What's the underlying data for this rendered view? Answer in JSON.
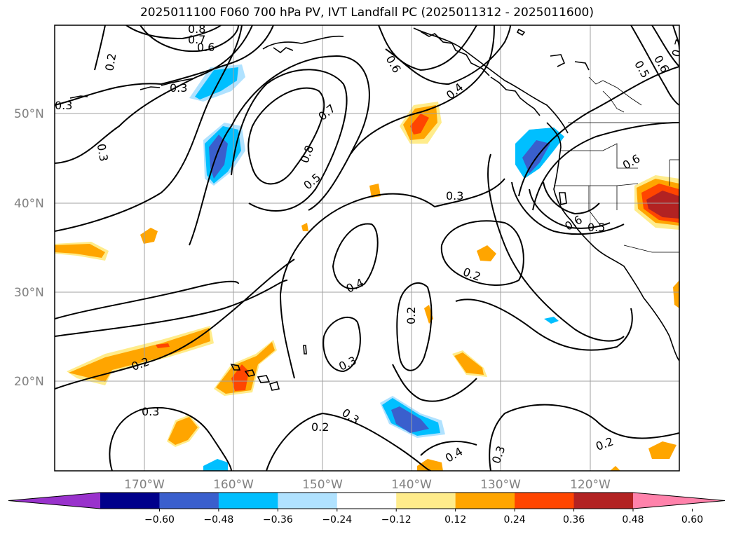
{
  "title": "2025011100 F060 700 hPa PV, IVT Landfall PC (2025011312 - 2025011600)",
  "lat_labels": [
    "50°N",
    "40°N",
    "30°N",
    "20°N"
  ],
  "lon_labels": [
    "170°W",
    "160°W",
    "150°W",
    "140°W",
    "130°W",
    "120°W"
  ],
  "contour_labels": [
    "0.2",
    "0.3",
    "0.4",
    "0.5",
    "0.6",
    "0.7",
    "0.8"
  ],
  "colorbar": {
    "ticks": [
      "−0.60",
      "−0.48",
      "−0.36",
      "−0.24",
      "−0.12",
      "0.12",
      "0.24",
      "0.36",
      "0.48",
      "0.60"
    ],
    "colors": [
      "#9932cc",
      "#00008b",
      "#3a5fcd",
      "#00bfff",
      "#b0e2ff",
      "#ffffff",
      "#ffec8b",
      "#ffa500",
      "#ff4500",
      "#b22222",
      "#ff82ab"
    ]
  },
  "colors": {
    "frame": "#000000",
    "grid": "#a0a0a0",
    "tick_label": "#808080"
  }
}
